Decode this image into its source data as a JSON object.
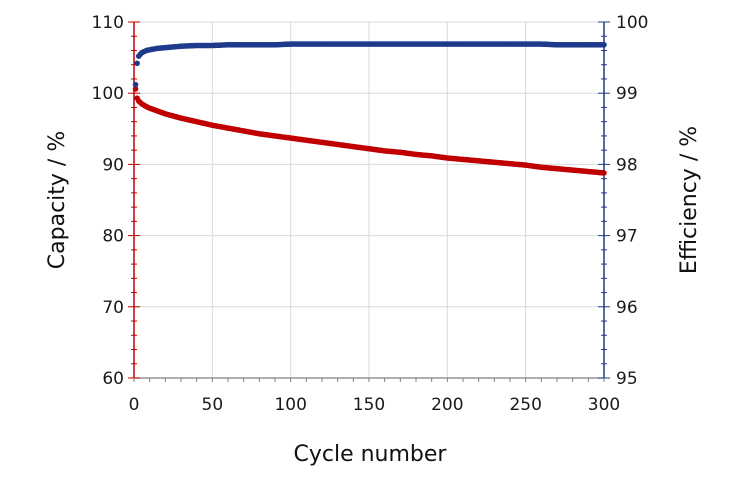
{
  "chart_data": {
    "type": "scatter",
    "title": "",
    "xlabel": "Cycle number",
    "ylabel_left": "Capacity / %",
    "ylabel_right": "Efficiency / %",
    "xlim": [
      0,
      300
    ],
    "ylim_left": [
      60,
      110
    ],
    "ylim_right": [
      95,
      100
    ],
    "x_ticks": [
      "0",
      "50",
      "100",
      "150",
      "200",
      "250",
      "300"
    ],
    "y_left_ticks": [
      "60",
      "70",
      "80",
      "90",
      "100",
      "110"
    ],
    "y_right_ticks": [
      "95",
      "96",
      "97",
      "98",
      "99",
      "100"
    ],
    "grid": true,
    "legend": "none",
    "colors": {
      "capacity": "#c00000",
      "efficiency": "#1f3a8a",
      "grid": "#d9d9d9"
    },
    "series": [
      {
        "axis": "left",
        "color": "#c00000",
        "x": [
          1,
          2,
          3,
          5,
          8,
          10,
          15,
          20,
          25,
          30,
          40,
          50,
          60,
          70,
          80,
          90,
          100,
          110,
          120,
          130,
          140,
          150,
          160,
          170,
          180,
          190,
          200,
          210,
          220,
          230,
          240,
          250,
          260,
          270,
          280,
          290,
          300
        ],
        "y": [
          100.6,
          99.3,
          98.9,
          98.5,
          98.1,
          97.9,
          97.5,
          97.1,
          96.8,
          96.5,
          96.0,
          95.5,
          95.1,
          94.7,
          94.3,
          94.0,
          93.7,
          93.4,
          93.1,
          92.8,
          92.5,
          92.2,
          91.9,
          91.7,
          91.4,
          91.2,
          90.9,
          90.7,
          90.5,
          90.3,
          90.1,
          89.9,
          89.6,
          89.4,
          89.2,
          89.0,
          88.8
        ]
      },
      {
        "axis": "right",
        "color": "#1f3a8a",
        "x": [
          1,
          2,
          3,
          5,
          8,
          10,
          15,
          20,
          25,
          30,
          40,
          50,
          60,
          70,
          80,
          90,
          100,
          110,
          120,
          130,
          140,
          150,
          160,
          170,
          180,
          190,
          200,
          210,
          220,
          230,
          240,
          250,
          260,
          270,
          280,
          290,
          300
        ],
        "y": [
          99.12,
          99.42,
          99.52,
          99.57,
          99.6,
          99.61,
          99.63,
          99.64,
          99.65,
          99.66,
          99.67,
          99.67,
          99.68,
          99.68,
          99.68,
          99.68,
          99.69,
          99.69,
          99.69,
          99.69,
          99.69,
          99.69,
          99.69,
          99.69,
          99.69,
          99.69,
          99.69,
          99.69,
          99.69,
          99.69,
          99.69,
          99.69,
          99.69,
          99.68,
          99.68,
          99.68,
          99.68
        ]
      }
    ]
  }
}
